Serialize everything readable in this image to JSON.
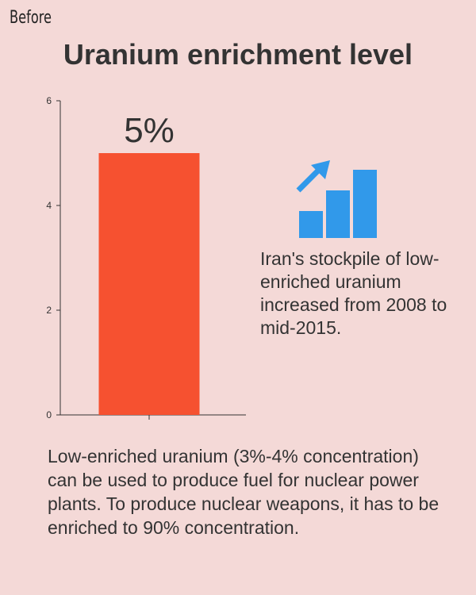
{
  "header": {
    "tag": "Before",
    "title": "Uranium enrichment level"
  },
  "chart_data": {
    "type": "bar",
    "categories": [
      ""
    ],
    "values": [
      5
    ],
    "value_labels": [
      "5%"
    ],
    "ylim": [
      0,
      6
    ],
    "yticks": [
      0,
      2,
      4,
      6
    ],
    "grid": false,
    "bar_color": "#f65130",
    "axis_color": "#333333"
  },
  "side_note": {
    "icon": "growth-chart-icon",
    "icon_color": "#3199ea",
    "text": "Iran's stockpile of low-enriched uranium increased from 2008 to mid-2015."
  },
  "footnote": "Low-enriched uranium (3%-4% concentration) can be used to produce fuel for nuclear power plants. To produce nuclear weapons, it has to be enriched to 90% concentration."
}
